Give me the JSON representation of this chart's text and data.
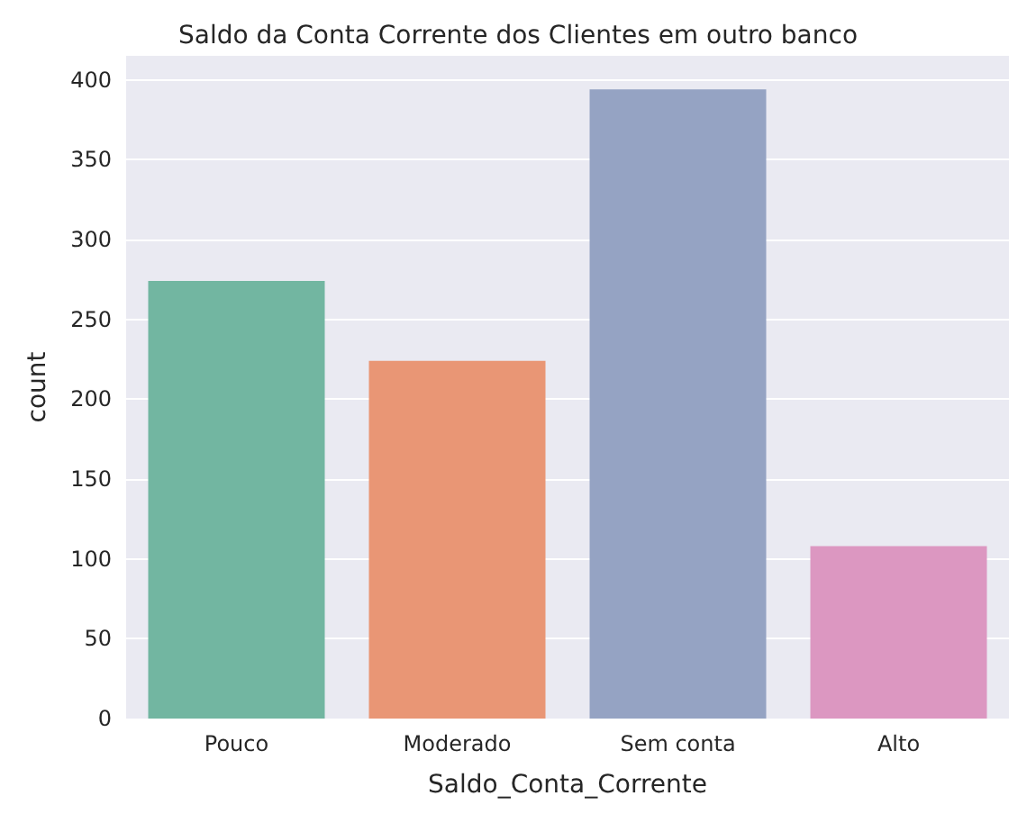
{
  "chart_data": {
    "type": "bar",
    "title": "Saldo da Conta Corrente dos Clientes em outro banco",
    "xlabel": "Saldo_Conta_Corrente",
    "ylabel": "count",
    "categories": [
      "Pouco",
      "Moderado",
      "Sem conta",
      "Alto"
    ],
    "values": [
      274,
      224,
      394,
      108
    ],
    "colors": [
      "#72b6a1",
      "#e99675",
      "#95a3c3",
      "#dc97c1"
    ],
    "ylim": [
      0,
      415
    ],
    "yticks": [
      0,
      50,
      100,
      150,
      200,
      250,
      300,
      350,
      400
    ],
    "grid": "y"
  }
}
